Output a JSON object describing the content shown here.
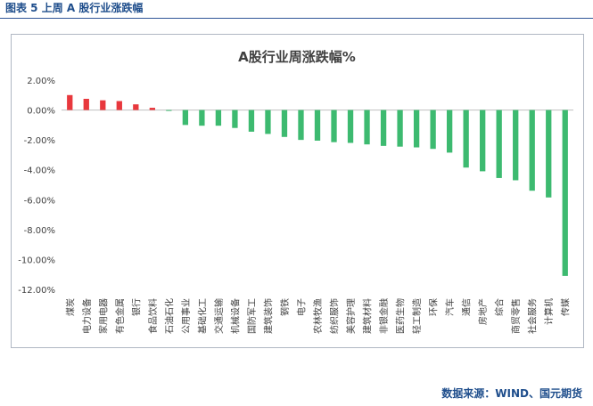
{
  "header": {
    "text": "图表 5 上周 A 股行业涨跌幅"
  },
  "source": {
    "text": "数据来源：WIND、国元期货"
  },
  "colors": {
    "positive": "#e8383d",
    "negative": "#3dba70",
    "axis": "#bfbfbf",
    "header": "#1f4e8c"
  },
  "chart_data": {
    "type": "bar",
    "title": "A股行业周涨跌幅%",
    "xlabel": "",
    "ylabel": "",
    "ylim": [
      -12,
      2
    ],
    "yticks": [
      2,
      0,
      -2,
      -4,
      -6,
      -8,
      -10,
      -12
    ],
    "ytick_labels": [
      "2.00%",
      "0.00%",
      "-2.00%",
      "-4.00%",
      "-6.00%",
      "-8.00%",
      "-10.00%",
      "-12.00%"
    ],
    "grid": false,
    "legend": "none",
    "categories": [
      "煤炭",
      "电力设备",
      "家用电器",
      "有色金属",
      "银行",
      "食品饮料",
      "石油石化",
      "公用事业",
      "基础化工",
      "交通运输",
      "机械设备",
      "国防军工",
      "建筑装饰",
      "钢铁",
      "电子",
      "农林牧渔",
      "纺织服饰",
      "美容护理",
      "建筑材料",
      "非银金融",
      "医药生物",
      "轻工制造",
      "环保",
      "汽车",
      "通信",
      "房地产",
      "综合",
      "商贸零售",
      "社会服务",
      "计算机",
      "传媒"
    ],
    "values": [
      1.0,
      0.75,
      0.65,
      0.6,
      0.38,
      0.15,
      -0.06,
      -1.0,
      -1.05,
      -1.05,
      -1.2,
      -1.45,
      -1.6,
      -1.8,
      -2.0,
      -2.05,
      -2.15,
      -2.2,
      -2.3,
      -2.4,
      -2.45,
      -2.5,
      -2.6,
      -2.85,
      -3.85,
      -4.1,
      -4.55,
      -4.7,
      -5.4,
      -5.85,
      -11.1
    ]
  }
}
